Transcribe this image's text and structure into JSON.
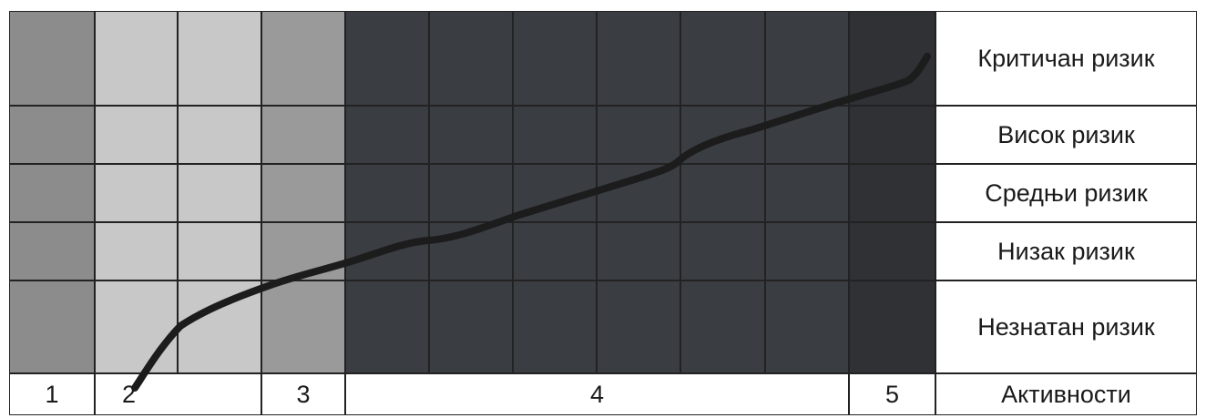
{
  "risk_levels": [
    {
      "key": "critical",
      "label": "Критичан ризик"
    },
    {
      "key": "high",
      "label": "Висок ризик"
    },
    {
      "key": "medium",
      "label": "Средњи ризик"
    },
    {
      "key": "low",
      "label": "Низак ризик"
    },
    {
      "key": "negligible",
      "label": "Незнатан ризик"
    }
  ],
  "activities": {
    "axis_label": "Активности",
    "zones": [
      {
        "label": "1",
        "shade": "#8c8c8c"
      },
      {
        "label": "2",
        "shade": "#c8c8c8"
      },
      {
        "label": "3",
        "shade": "#9a9a9a"
      },
      {
        "label": "4",
        "shade": "#3a3d42"
      },
      {
        "label": "5",
        "shade": "#2f3135"
      }
    ]
  },
  "colors": {
    "grid_line": "#222222",
    "curve": "#1c1c1c",
    "background": "#ffffff"
  }
}
